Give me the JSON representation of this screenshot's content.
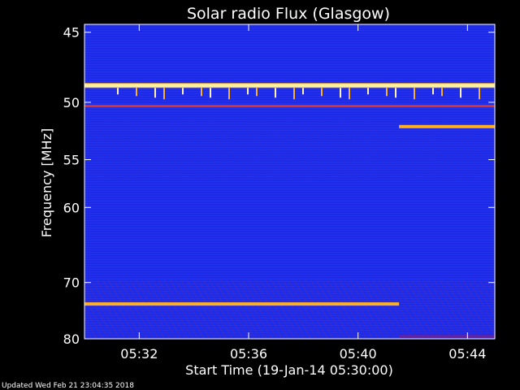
{
  "chart_data": {
    "type": "heatmap",
    "title": "Solar radio Flux (Glasgow)",
    "ylabel": "Frequency [MHz]",
    "xlabel": "Start Time (19-Jan-14 05:30:00)",
    "y_axis": {
      "reversed": true,
      "scale": "reciprocal",
      "range_mhz": [
        44.5,
        80.0
      ],
      "ticks": [
        "45",
        "50",
        "55",
        "60",
        "70",
        "80"
      ]
    },
    "x_axis": {
      "range": [
        "05:30:00",
        "05:45:00"
      ],
      "ticks": [
        "05:32",
        "05:36",
        "05:40",
        "05:44"
      ]
    },
    "colormap": {
      "background": "#1c2be8",
      "mid": "#6a1f9a",
      "high": "#d8342a",
      "peak": "#ffb020",
      "max": "#fff2a0"
    },
    "features": [
      {
        "name": "continuous emission",
        "freq_mhz": 48.7,
        "time_from": "05:30:00",
        "time_to": "05:45:00",
        "intensity": "max"
      },
      {
        "name": "continuous emission",
        "freq_mhz": 50.3,
        "time_from": "05:30:00",
        "time_to": "05:45:00",
        "intensity": "high"
      },
      {
        "name": "continuous emission",
        "freq_mhz": 52.0,
        "time_from": "05:41:30",
        "time_to": "05:45:00",
        "intensity": "peak"
      },
      {
        "name": "continuous emission",
        "freq_mhz": 73.5,
        "time_from": "05:30:00",
        "time_to": "05:41:30",
        "intensity": "peak"
      },
      {
        "name": "continuous emission",
        "freq_mhz": 79.5,
        "time_from": "05:41:30",
        "time_to": "05:45:00",
        "intensity": "mid"
      }
    ]
  },
  "footer": {
    "updated": "Updated Wed Feb 21 23:04:35 2018"
  }
}
